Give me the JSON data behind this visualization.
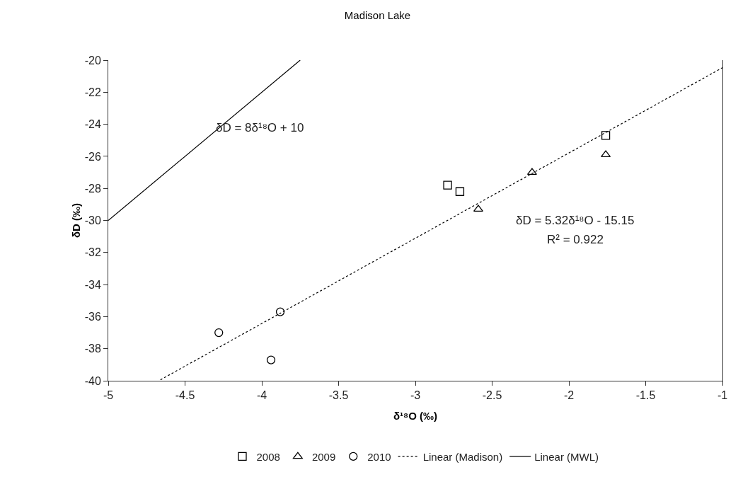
{
  "chart_data": {
    "type": "scatter",
    "title": "Madison Lake",
    "xlabel": "δ¹⁸O (‰)",
    "ylabel": "δD (‰)",
    "xlim": [
      -5,
      -1
    ],
    "xticks": [
      -5,
      -4.5,
      -4,
      -3.5,
      -3,
      -2.5,
      -2,
      -1.5,
      -1
    ],
    "ylim": [
      -40,
      -20
    ],
    "yticks": [
      -40,
      -38,
      -36,
      -34,
      -32,
      -30,
      -28,
      -26,
      -24,
      -22,
      -20
    ],
    "grid": false,
    "legend": "bottom",
    "series": [
      {
        "name": "2008",
        "marker": "square",
        "color": "#000000",
        "x": [
          -1.76,
          -2.79,
          -2.71
        ],
        "values": [
          -24.7,
          -27.8,
          -28.2
        ]
      },
      {
        "name": "2009",
        "marker": "triangle",
        "color": "#000000",
        "x": [
          -1.76,
          -2.24,
          -2.59
        ],
        "values": [
          -25.9,
          -27.0,
          -29.3
        ]
      },
      {
        "name": "2010",
        "marker": "circle",
        "color": "#000000",
        "x": [
          -4.28,
          -3.88,
          -3.94
        ],
        "values": [
          -37.0,
          -35.7,
          -38.7
        ]
      },
      {
        "name": "Linear (Madison)",
        "type": "line",
        "line_style": "dotted",
        "color": "#000000",
        "x": [
          -4.66,
          -1
        ],
        "values": [
          -39.94,
          -20.47
        ]
      },
      {
        "name": "Linear (MWL)",
        "type": "line",
        "line_style": "solid",
        "color": "#000000",
        "x": [
          -5,
          -3.75
        ],
        "values": [
          -30,
          -20
        ]
      }
    ],
    "annotations": [
      "δD = 8δ¹⁸O + 10",
      "δD = 5.32δ¹⁸O - 15.15",
      "R² = 0.922"
    ]
  }
}
